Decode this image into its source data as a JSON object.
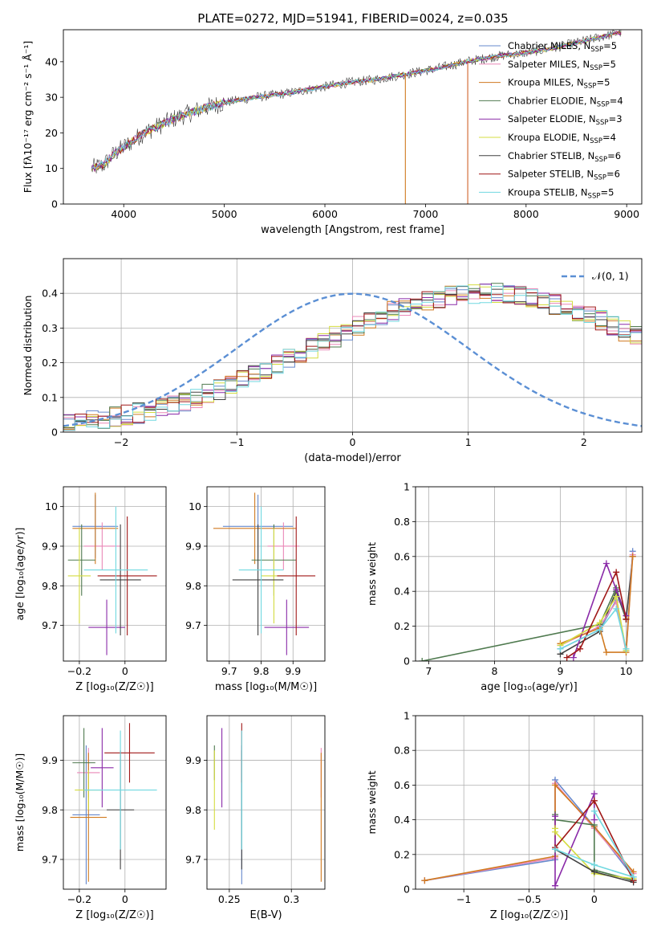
{
  "figure": {
    "title": "PLATE=0272, MJD=51941, FIBERID=0024, z=0.035"
  },
  "chart_data": [
    {
      "id": "spectrum",
      "type": "line",
      "xlabel": "wavelength [Angstrom, rest frame]",
      "ylabel": "Flux [fλ10⁻¹⁷ erg cm⁻² s⁻¹ Å⁻¹]",
      "xlim": [
        3400,
        9150
      ],
      "ylim": [
        0,
        49
      ],
      "xticks": [
        4000,
        5000,
        6000,
        7000,
        8000,
        9000
      ],
      "yticks": [
        0,
        10,
        20,
        30,
        40
      ],
      "grid": false,
      "legend_position": "top-right",
      "legend": [
        {
          "name": "Chabrier MILES, N",
          "sub": "SSP",
          "val": "=5",
          "color": "#6688cc"
        },
        {
          "name": "Salpeter MILES, N",
          "sub": "SSP",
          "val": "=5",
          "color": "#ea88b8"
        },
        {
          "name": "Kroupa MILES, N",
          "sub": "SSP",
          "val": "=5",
          "color": "#d07a20"
        },
        {
          "name": "Chabrier ELODIE, N",
          "sub": "SSP",
          "val": "=4",
          "color": "#4f7a4f"
        },
        {
          "name": "Salpeter ELODIE, N",
          "sub": "SSP",
          "val": "=3",
          "color": "#8a2aa8"
        },
        {
          "name": "Kroupa ELODIE, N",
          "sub": "SSP",
          "val": "=4",
          "color": "#d4dc40"
        },
        {
          "name": "Chabrier STELIB, N",
          "sub": "SSP",
          "val": "=6",
          "color": "#404040"
        },
        {
          "name": "Salpeter STELIB, N",
          "sub": "SSP",
          "val": "=6",
          "color": "#a01818"
        },
        {
          "name": "Kroupa STELIB, N",
          "sub": "SSP",
          "val": "=5",
          "color": "#70d8e0"
        }
      ],
      "continuum": [
        [
          3680,
          10
        ],
        [
          3800,
          11
        ],
        [
          3900,
          14
        ],
        [
          4000,
          16
        ],
        [
          4200,
          20
        ],
        [
          4500,
          24
        ],
        [
          4800,
          27
        ],
        [
          5000,
          28.5
        ],
        [
          5300,
          30
        ],
        [
          5600,
          31
        ],
        [
          5900,
          32.5
        ],
        [
          6200,
          34
        ],
        [
          6500,
          35
        ],
        [
          6800,
          36.5
        ],
        [
          7100,
          38
        ],
        [
          7400,
          40
        ],
        [
          7700,
          41.5
        ],
        [
          8000,
          42.5
        ],
        [
          8300,
          44
        ],
        [
          8600,
          46
        ],
        [
          8900,
          48
        ],
        [
          9000,
          48.5
        ]
      ],
      "dropouts": [
        {
          "x": 6800,
          "to": 0,
          "color": "#d07a20"
        },
        {
          "x": 7420,
          "to": 0,
          "color": "#d0642a"
        }
      ]
    },
    {
      "id": "residuals",
      "type": "bar",
      "xlabel": "(data-model)/error",
      "ylabel": "Normed distribution",
      "xlim": [
        -2.5,
        2.5
      ],
      "ylim": [
        0,
        0.5
      ],
      "xticks": [
        -2,
        -1,
        0,
        1,
        2
      ],
      "yticks": [
        0.0,
        0.1,
        0.2,
        0.3,
        0.4
      ],
      "grid": true,
      "legend_position": "top-right",
      "legend_label": "𝒩(0, 1)",
      "bin_width": 0.1,
      "bins_center": [
        0.027,
        0.03,
        0.034,
        0.038,
        0.043,
        0.049,
        0.055,
        0.062,
        0.07,
        0.079,
        0.088,
        0.098,
        0.11,
        0.122,
        0.135,
        0.149,
        0.163,
        0.178,
        0.194,
        0.21,
        0.226,
        0.242,
        0.259,
        0.275,
        0.291,
        0.306,
        0.321,
        0.335,
        0.347,
        0.359,
        0.369,
        0.378,
        0.385,
        0.391,
        0.396,
        0.398,
        0.399,
        0.399,
        0.396,
        0.392,
        0.386,
        0.378,
        0.369,
        0.359,
        0.348,
        0.336,
        0.322,
        0.307,
        0.291,
        0.275
      ],
      "series_colors": [
        "#6688cc",
        "#ea88b8",
        "#d07a20",
        "#4f7a4f",
        "#8a2aa8",
        "#d4dc40",
        "#404040",
        "#a01818",
        "#70d8e0"
      ]
    },
    {
      "id": "age-vs-Z",
      "type": "scatter",
      "xlabel": "Z [log₁₀(Z/Z☉)]",
      "ylabel": "age  [log₁₀(age/yr)]",
      "xlim": [
        -0.27,
        0.18
      ],
      "ylim": [
        9.61,
        10.05
      ],
      "xticks": [
        -0.2,
        0.0
      ],
      "yticks": [
        9.7,
        9.8,
        9.9,
        10.0
      ],
      "grid": true,
      "points": [
        {
          "x": -0.13,
          "y": 9.95,
          "xerr": 0.1,
          "yerr": 0.08,
          "color": "#6688cc"
        },
        {
          "x": -0.1,
          "y": 9.9,
          "xerr": 0.08,
          "yerr": 0.06,
          "color": "#ea88b8"
        },
        {
          "x": -0.13,
          "y": 9.945,
          "xerr": 0.1,
          "yerr": 0.09,
          "color": "#d07a20"
        },
        {
          "x": -0.19,
          "y": 9.865,
          "xerr": 0.06,
          "yerr": 0.09,
          "color": "#4f7a4f"
        },
        {
          "x": -0.08,
          "y": 9.695,
          "xerr": 0.08,
          "yerr": 0.07,
          "color": "#8a2aa8"
        },
        {
          "x": -0.2,
          "y": 9.825,
          "xerr": 0.05,
          "yerr": 0.12,
          "color": "#d4dc40"
        },
        {
          "x": -0.02,
          "y": 9.815,
          "xerr": 0.09,
          "yerr": 0.14,
          "color": "#404040"
        },
        {
          "x": 0.01,
          "y": 9.825,
          "xerr": 0.13,
          "yerr": 0.15,
          "color": "#a01818"
        },
        {
          "x": -0.04,
          "y": 9.84,
          "xerr": 0.14,
          "yerr": 0.16,
          "color": "#70d8e0"
        }
      ]
    },
    {
      "id": "age-vs-mass",
      "type": "scatter",
      "xlabel": "mass [log₁₀(M/M☉)]",
      "ylabel": "",
      "xlim": [
        9.63,
        10.0
      ],
      "ylim": [
        9.61,
        10.05
      ],
      "xticks": [
        9.7,
        9.8,
        9.9
      ],
      "yticks": [
        9.7,
        9.8,
        9.9,
        10.0
      ],
      "grid": true,
      "points": [
        {
          "x": 9.79,
          "y": 9.95,
          "xerr": 0.11,
          "yerr": 0.08,
          "color": "#6688cc"
        },
        {
          "x": 9.87,
          "y": 9.9,
          "xerr": 0.05,
          "yerr": 0.06,
          "color": "#ea88b8"
        },
        {
          "x": 9.78,
          "y": 9.945,
          "xerr": 0.13,
          "yerr": 0.09,
          "color": "#d07a20"
        },
        {
          "x": 9.84,
          "y": 9.865,
          "xerr": 0.07,
          "yerr": 0.09,
          "color": "#4f7a4f"
        },
        {
          "x": 9.88,
          "y": 9.695,
          "xerr": 0.07,
          "yerr": 0.07,
          "color": "#8a2aa8"
        },
        {
          "x": 9.84,
          "y": 9.825,
          "xerr": 0.04,
          "yerr": 0.12,
          "color": "#d4dc40"
        },
        {
          "x": 9.79,
          "y": 9.815,
          "xerr": 0.08,
          "yerr": 0.14,
          "color": "#404040"
        },
        {
          "x": 9.91,
          "y": 9.825,
          "xerr": 0.06,
          "yerr": 0.15,
          "color": "#a01818"
        },
        {
          "x": 9.8,
          "y": 9.84,
          "xerr": 0.07,
          "yerr": 0.16,
          "color": "#70d8e0"
        }
      ]
    },
    {
      "id": "massweight-vs-age",
      "type": "line",
      "xlabel": "age  [log₁₀(age/yr)]",
      "ylabel": "mass weight",
      "xlim": [
        6.8,
        10.25
      ],
      "ylim": [
        0,
        1
      ],
      "xticks": [
        7,
        8,
        9,
        10
      ],
      "yticks": [
        0.0,
        0.2,
        0.4,
        0.6,
        0.8,
        1.0
      ],
      "grid": true,
      "series": [
        {
          "color": "#404040",
          "points": [
            [
              9.0,
              0.04
            ],
            [
              9.6,
              0.17
            ],
            [
              9.85,
              0.4
            ],
            [
              10.0,
              0.24
            ],
            [
              10.1,
              0.6
            ]
          ]
        },
        {
          "color": "#6688cc",
          "points": [
            [
              9.0,
              0.07
            ],
            [
              9.6,
              0.18
            ],
            [
              9.85,
              0.35
            ],
            [
              10.0,
              0.06
            ],
            [
              10.1,
              0.63
            ]
          ]
        },
        {
          "color": "#ea88b8",
          "points": [
            [
              9.0,
              0.09
            ],
            [
              9.6,
              0.2
            ],
            [
              9.85,
              0.34
            ],
            [
              10.0,
              0.05
            ],
            [
              10.1,
              0.61
            ]
          ]
        },
        {
          "color": "#d07a20",
          "points": [
            [
              9.0,
              0.1
            ],
            [
              9.6,
              0.19
            ],
            [
              9.7,
              0.05
            ],
            [
              10.0,
              0.05
            ],
            [
              10.1,
              0.6
            ]
          ]
        },
        {
          "color": "#4f7a4f",
          "points": [
            [
              6.9,
              0.0
            ],
            [
              9.6,
              0.21
            ],
            [
              9.85,
              0.42
            ],
            [
              10.0,
              0.24
            ]
          ]
        },
        {
          "color": "#8a2aa8",
          "points": [
            [
              9.2,
              0.02
            ],
            [
              9.7,
              0.56
            ],
            [
              9.85,
              0.41
            ],
            [
              10.0,
              0.26
            ]
          ]
        },
        {
          "color": "#d4dc40",
          "points": [
            [
              9.0,
              0.09
            ],
            [
              9.6,
              0.22
            ],
            [
              9.85,
              0.37
            ],
            [
              10.0,
              0.06
            ]
          ]
        },
        {
          "color": "#a01818",
          "points": [
            [
              9.1,
              0.02
            ],
            [
              9.3,
              0.07
            ],
            [
              9.85,
              0.51
            ],
            [
              10.0,
              0.24
            ]
          ]
        },
        {
          "color": "#70d8e0",
          "points": [
            [
              9.0,
              0.07
            ],
            [
              9.6,
              0.18
            ],
            [
              9.85,
              0.3
            ],
            [
              10.0,
              0.07
            ]
          ]
        }
      ]
    },
    {
      "id": "mass-vs-Z",
      "type": "scatter",
      "xlabel": "Z [log₁₀(Z/Z☉)]",
      "ylabel": "mass [log₁₀(M/M☉)]",
      "xlim": [
        -0.27,
        0.18
      ],
      "ylim": [
        9.64,
        9.99
      ],
      "xticks": [
        -0.2,
        0.0
      ],
      "yticks": [
        9.7,
        9.8,
        9.9
      ],
      "grid": true,
      "points": [
        {
          "x": -0.17,
          "y": 9.79,
          "xerr": 0.06,
          "yerr": 0.14,
          "color": "#6688cc"
        },
        {
          "x": -0.16,
          "y": 9.875,
          "xerr": 0.05,
          "yerr": 0.05,
          "color": "#ea88b8"
        },
        {
          "x": -0.16,
          "y": 9.785,
          "xerr": 0.08,
          "yerr": 0.13,
          "color": "#d07a20"
        },
        {
          "x": -0.18,
          "y": 9.895,
          "xerr": 0.05,
          "yerr": 0.07,
          "color": "#4f7a4f"
        },
        {
          "x": -0.1,
          "y": 9.885,
          "xerr": 0.05,
          "yerr": 0.08,
          "color": "#8a2aa8"
        },
        {
          "x": -0.16,
          "y": 9.84,
          "xerr": 0.06,
          "yerr": 0.04,
          "color": "#d4dc40"
        },
        {
          "x": -0.02,
          "y": 9.8,
          "xerr": 0.06,
          "yerr": 0.12,
          "color": "#404040"
        },
        {
          "x": 0.02,
          "y": 9.915,
          "xerr": 0.11,
          "yerr": 0.06,
          "color": "#a01818"
        },
        {
          "x": -0.02,
          "y": 9.84,
          "xerr": 0.16,
          "yerr": 0.12,
          "color": "#70d8e0"
        }
      ]
    },
    {
      "id": "mass-vs-EBV",
      "type": "scatter",
      "xlabel": "E(B-V)",
      "ylabel": "",
      "xlim": [
        0.232,
        0.327
      ],
      "ylim": [
        9.64,
        9.99
      ],
      "xticks": [
        0.25,
        0.3
      ],
      "yticks": [
        9.7,
        9.8,
        9.9
      ],
      "grid": true,
      "points": [
        {
          "x": 0.26,
          "y": 9.79,
          "yerr": 0.14,
          "color": "#6688cc"
        },
        {
          "x": 0.324,
          "y": 9.875,
          "yerr": 0.05,
          "color": "#ea88b8"
        },
        {
          "x": 0.324,
          "y": 9.785,
          "yerr": 0.13,
          "color": "#d07a20"
        },
        {
          "x": 0.238,
          "y": 9.895,
          "yerr": 0.035,
          "color": "#4f7a4f"
        },
        {
          "x": 0.244,
          "y": 9.885,
          "yerr": 0.08,
          "color": "#8a2aa8"
        },
        {
          "x": 0.238,
          "y": 9.84,
          "yerr": 0.08,
          "color": "#d4dc40"
        },
        {
          "x": 0.26,
          "y": 9.8,
          "yerr": 0.12,
          "color": "#404040"
        },
        {
          "x": 0.26,
          "y": 9.915,
          "yerr": 0.06,
          "color": "#a01818"
        },
        {
          "x": 0.26,
          "y": 9.84,
          "yerr": 0.12,
          "color": "#70d8e0"
        }
      ]
    },
    {
      "id": "massweight-vs-Z",
      "type": "line",
      "xlabel": "Z [log₁₀(Z/Z☉)]",
      "ylabel": "mass weight",
      "xlim": [
        -1.37,
        0.37
      ],
      "ylim": [
        0,
        1
      ],
      "xticks": [
        -1.0,
        -0.5,
        0.0
      ],
      "yticks": [
        0.0,
        0.2,
        0.4,
        0.6,
        0.8,
        1.0
      ],
      "grid": true,
      "series": [
        {
          "color": "#6688cc",
          "points": [
            [
              -1.3,
              0.05
            ],
            [
              -0.3,
              0.17
            ],
            [
              -0.3,
              0.63
            ],
            [
              0.0,
              0.36
            ],
            [
              0.3,
              0.07
            ]
          ]
        },
        {
          "color": "#ea88b8",
          "points": [
            [
              -1.3,
              0.05
            ],
            [
              -0.3,
              0.18
            ],
            [
              -0.3,
              0.61
            ],
            [
              0.0,
              0.35
            ],
            [
              0.3,
              0.09
            ]
          ]
        },
        {
          "color": "#d07a20",
          "points": [
            [
              -1.3,
              0.05
            ],
            [
              -0.3,
              0.19
            ],
            [
              -0.3,
              0.6
            ],
            [
              0.0,
              0.36
            ],
            [
              0.3,
              0.1
            ]
          ]
        },
        {
          "color": "#4f7a4f",
          "points": [
            [
              -0.3,
              0.43
            ],
            [
              -0.3,
              0.4
            ],
            [
              0.0,
              0.37
            ],
            [
              0.0,
              0.11
            ],
            [
              0.3,
              0.05
            ]
          ]
        },
        {
          "color": "#8a2aa8",
          "points": [
            [
              -0.3,
              0.42
            ],
            [
              -0.3,
              0.02
            ],
            [
              0.0,
              0.55
            ],
            [
              0.0,
              0.4
            ]
          ]
        },
        {
          "color": "#d4dc40",
          "points": [
            [
              -0.3,
              0.35
            ],
            [
              -0.3,
              0.33
            ],
            [
              0.0,
              0.09
            ],
            [
              0.3,
              0.06
            ]
          ]
        },
        {
          "color": "#404040",
          "points": [
            [
              -0.3,
              0.23
            ],
            [
              0.0,
              0.1
            ],
            [
              0.3,
              0.04
            ]
          ]
        },
        {
          "color": "#a01818",
          "points": [
            [
              -0.3,
              0.24
            ],
            [
              0.0,
              0.51
            ],
            [
              0.0,
              0.51
            ],
            [
              0.3,
              0.05
            ]
          ]
        },
        {
          "color": "#70d8e0",
          "points": [
            [
              -0.3,
              0.23
            ],
            [
              0.0,
              0.14
            ],
            [
              0.3,
              0.07
            ],
            [
              0.0,
              0.45
            ]
          ]
        }
      ]
    }
  ]
}
